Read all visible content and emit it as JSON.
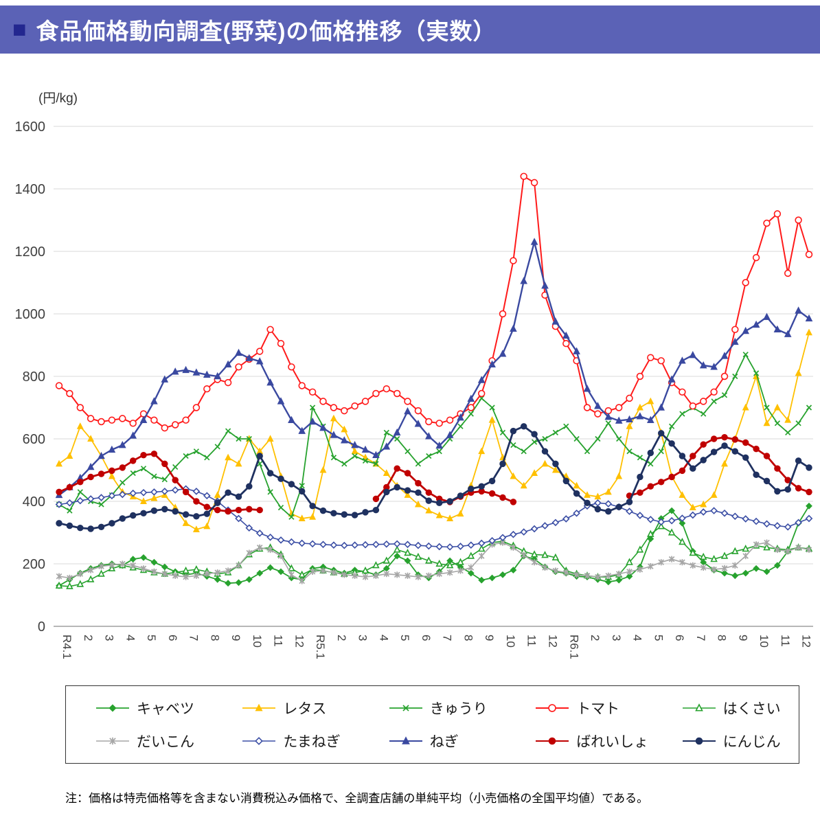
{
  "header": {
    "bullet": "■",
    "title": "食品価格動向調査(野菜)の価格推移（実数）",
    "bg_color": "#5b62b6",
    "bullet_color": "#23278f",
    "text_color": "#ffffff"
  },
  "note": "注：価格は特売価格等を含まない消費税込み価格で、全調査店舗の単純平均（小売価格の全国平均値）である。",
  "chart_data": {
    "type": "line",
    "unit_label": "(円/kg)",
    "ylim": [
      0,
      1600
    ],
    "y_ticks": [
      0,
      200,
      400,
      600,
      800,
      1000,
      1200,
      1400,
      1600
    ],
    "grid": true,
    "legend_position": "bottom",
    "samples_per_month": 2,
    "x_tick_labels": [
      "R4.1",
      "2",
      "3",
      "4",
      "5",
      "6",
      "7",
      "8",
      "9",
      "10",
      "11",
      "12",
      "R5.1",
      "2",
      "3",
      "4",
      "5",
      "6",
      "7",
      "8",
      "9",
      "10",
      "11",
      "12",
      "R6.1",
      "2",
      "3",
      "4",
      "5",
      "6",
      "7",
      "8",
      "9",
      "10",
      "11",
      "12"
    ],
    "series": [
      {
        "key": "cabbage",
        "name": "キャベツ",
        "color": "#27a22e",
        "marker": "diamond",
        "line_width": 1.8,
        "marker_size": 4.2,
        "values": [
          130,
          150,
          170,
          185,
          195,
          200,
          195,
          215,
          220,
          205,
          190,
          175,
          165,
          170,
          160,
          150,
          138,
          140,
          150,
          170,
          188,
          175,
          155,
          150,
          185,
          190,
          180,
          170,
          180,
          175,
          165,
          185,
          225,
          210,
          165,
          155,
          175,
          210,
          190,
          170,
          148,
          155,
          165,
          180,
          225,
          215,
          190,
          175,
          170,
          160,
          158,
          150,
          142,
          148,
          160,
          190,
          280,
          345,
          370,
          330,
          240,
          205,
          180,
          170,
          162,
          170,
          185,
          175,
          195,
          240,
          330,
          385
        ]
      },
      {
        "key": "lettuce",
        "name": "レタス",
        "color": "#ffc000",
        "marker": "triangle",
        "line_width": 1.8,
        "marker_size": 4.6,
        "values": [
          520,
          545,
          640,
          600,
          545,
          480,
          430,
          415,
          400,
          410,
          420,
          380,
          330,
          310,
          320,
          420,
          540,
          520,
          600,
          560,
          600,
          480,
          360,
          345,
          350,
          500,
          665,
          630,
          560,
          540,
          520,
          490,
          450,
          420,
          390,
          370,
          355,
          345,
          360,
          450,
          560,
          660,
          540,
          480,
          450,
          490,
          520,
          500,
          480,
          450,
          420,
          415,
          430,
          480,
          640,
          700,
          720,
          620,
          480,
          420,
          380,
          390,
          420,
          520,
          600,
          700,
          800,
          650,
          700,
          660,
          810,
          940
        ]
      },
      {
        "key": "cucumber",
        "name": "きゅうり",
        "color": "#27a22e",
        "marker": "x",
        "line_width": 1.8,
        "marker_size": 4.4,
        "values": [
          390,
          370,
          430,
          400,
          390,
          420,
          460,
          490,
          505,
          480,
          470,
          510,
          545,
          560,
          540,
          575,
          625,
          600,
          600,
          520,
          430,
          380,
          350,
          450,
          700,
          640,
          540,
          520,
          545,
          530,
          520,
          620,
          600,
          560,
          520,
          545,
          560,
          600,
          640,
          680,
          730,
          700,
          620,
          580,
          560,
          590,
          600,
          620,
          640,
          600,
          560,
          600,
          650,
          600,
          560,
          540,
          520,
          560,
          640,
          680,
          700,
          680,
          720,
          740,
          800,
          870,
          810,
          700,
          650,
          620,
          650,
          700
        ]
      },
      {
        "key": "tomato",
        "name": "トマト",
        "color": "#ff1a1a",
        "marker": "circle-open",
        "line_width": 2.0,
        "marker_size": 4.8,
        "values": [
          770,
          745,
          700,
          665,
          655,
          660,
          665,
          650,
          680,
          660,
          635,
          645,
          660,
          700,
          760,
          790,
          780,
          830,
          855,
          880,
          950,
          905,
          830,
          770,
          750,
          720,
          700,
          690,
          705,
          720,
          745,
          760,
          745,
          720,
          690,
          655,
          650,
          660,
          680,
          700,
          745,
          850,
          1000,
          1170,
          1440,
          1420,
          1060,
          960,
          905,
          850,
          700,
          680,
          690,
          700,
          730,
          800,
          860,
          850,
          780,
          750,
          705,
          720,
          750,
          800,
          950,
          1100,
          1180,
          1290,
          1320,
          1130,
          1300,
          1190
        ]
      },
      {
        "key": "hakusai",
        "name": "はくさい",
        "color": "#27a22e",
        "marker": "triangle-open",
        "line_width": 1.6,
        "marker_size": 4.4,
        "values": [
          130,
          128,
          135,
          150,
          168,
          185,
          195,
          188,
          180,
          172,
          168,
          172,
          178,
          182,
          175,
          168,
          172,
          195,
          230,
          248,
          252,
          230,
          185,
          165,
          182,
          178,
          172,
          168,
          172,
          178,
          195,
          210,
          245,
          235,
          222,
          210,
          200,
          195,
          205,
          225,
          248,
          268,
          272,
          258,
          240,
          230,
          228,
          220,
          178,
          168,
          162,
          158,
          158,
          165,
          205,
          245,
          295,
          320,
          300,
          270,
          235,
          222,
          215,
          225,
          240,
          248,
          258,
          252,
          248,
          245,
          252,
          248
        ]
      },
      {
        "key": "daikon",
        "name": "だいこん",
        "color": "#a6a6a6",
        "marker": "asterisk",
        "line_width": 1.6,
        "marker_size": 4.6,
        "values": [
          160,
          155,
          168,
          180,
          192,
          196,
          200,
          195,
          185,
          175,
          168,
          162,
          158,
          162,
          168,
          172,
          178,
          195,
          235,
          252,
          245,
          225,
          165,
          145,
          175,
          178,
          172,
          165,
          162,
          158,
          162,
          168,
          165,
          162,
          158,
          162,
          168,
          172,
          178,
          188,
          225,
          262,
          268,
          252,
          228,
          205,
          188,
          178,
          172,
          165,
          162,
          158,
          162,
          168,
          175,
          182,
          192,
          205,
          215,
          205,
          195,
          188,
          182,
          186,
          195,
          225,
          262,
          268,
          245,
          240,
          252,
          245
        ]
      },
      {
        "key": "onion",
        "name": "たまねぎ",
        "color": "#3c4fa5",
        "marker": "diamond-open",
        "line_width": 1.6,
        "marker_size": 4.2,
        "values": [
          390,
          395,
          402,
          408,
          412,
          418,
          422,
          426,
          428,
          430,
          432,
          436,
          440,
          432,
          418,
          400,
          372,
          345,
          315,
          298,
          285,
          276,
          270,
          266,
          264,
          262,
          260,
          259,
          260,
          261,
          262,
          263,
          264,
          262,
          259,
          257,
          255,
          254,
          256,
          260,
          266,
          274,
          284,
          294,
          302,
          312,
          322,
          332,
          344,
          362,
          385,
          395,
          392,
          382,
          368,
          355,
          342,
          334,
          338,
          346,
          356,
          366,
          370,
          362,
          352,
          344,
          336,
          328,
          322,
          318,
          332,
          345
        ]
      },
      {
        "key": "negi",
        "name": "ねぎ",
        "color": "#3a49a0",
        "marker": "triangle",
        "line_width": 2.4,
        "marker_size": 5.0,
        "values": [
          420,
          445,
          475,
          510,
          545,
          565,
          580,
          610,
          660,
          720,
          790,
          815,
          820,
          812,
          805,
          800,
          838,
          875,
          858,
          848,
          780,
          720,
          660,
          625,
          655,
          635,
          612,
          595,
          580,
          565,
          548,
          575,
          620,
          688,
          648,
          608,
          578,
          612,
          668,
          728,
          788,
          838,
          872,
          952,
          1105,
          1230,
          1090,
          975,
          930,
          880,
          760,
          705,
          670,
          658,
          662,
          672,
          660,
          700,
          790,
          850,
          868,
          835,
          830,
          865,
          910,
          945,
          965,
          990,
          950,
          935,
          1010,
          985
        ]
      },
      {
        "key": "potato",
        "name": "ばれいしょ",
        "color": "#c00000",
        "marker": "circle",
        "line_width": 2.8,
        "marker_size": 4.6,
        "values": [
          430,
          445,
          462,
          478,
          488,
          498,
          508,
          530,
          548,
          552,
          520,
          468,
          430,
          400,
          382,
          372,
          368,
          372,
          375,
          372,
          null,
          null,
          null,
          null,
          null,
          null,
          null,
          null,
          null,
          null,
          408,
          445,
          505,
          490,
          458,
          428,
          408,
          398,
          415,
          428,
          432,
          425,
          412,
          398,
          null,
          null,
          null,
          null,
          null,
          null,
          null,
          null,
          null,
          null,
          418,
          428,
          448,
          462,
          478,
          498,
          545,
          582,
          600,
          605,
          598,
          588,
          568,
          545,
          505,
          468,
          442,
          430
        ]
      },
      {
        "key": "carrot",
        "name": "にんじん",
        "color": "#1f3160",
        "marker": "circle",
        "line_width": 2.8,
        "marker_size": 4.6,
        "values": [
          330,
          322,
          315,
          312,
          318,
          330,
          345,
          355,
          362,
          370,
          375,
          368,
          358,
          352,
          360,
          395,
          428,
          415,
          448,
          545,
          490,
          472,
          455,
          432,
          385,
          370,
          362,
          358,
          356,
          365,
          372,
          430,
          445,
          435,
          428,
          402,
          395,
          400,
          418,
          440,
          448,
          465,
          520,
          625,
          640,
          615,
          560,
          520,
          465,
          425,
          395,
          375,
          368,
          382,
          398,
          478,
          555,
          618,
          585,
          545,
          505,
          532,
          558,
          578,
          560,
          540,
          485,
          465,
          432,
          438,
          530,
          508
        ]
      }
    ]
  }
}
